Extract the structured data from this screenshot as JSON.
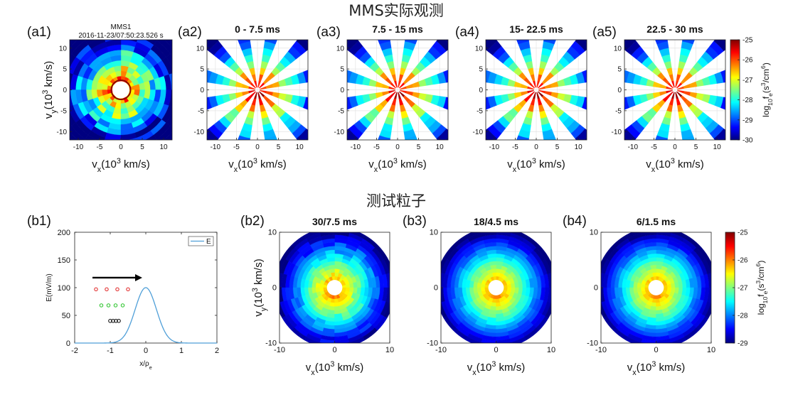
{
  "sections": {
    "top": "MMS实际观测",
    "bottom": "测试粒子"
  },
  "panel_labels": [
    "(a1)",
    "(a2)",
    "(a3)",
    "(a4)",
    "(a5)",
    "(b1)",
    "(b2)",
    "(b3)",
    "(b4)"
  ],
  "colors": {
    "colormap": [
      "#00007f",
      "#0000ff",
      "#007fff",
      "#00ffff",
      "#7fff7f",
      "#ffff00",
      "#ff7f00",
      "#ff0000",
      "#7f0000"
    ],
    "line": "#4f9fd8",
    "arrow": "#000000",
    "dots_red": "#e02020",
    "dots_green": "#20c020",
    "dots_black": "#000000"
  },
  "chart_data": [
    {
      "id": "a1",
      "type": "heatmap",
      "title": "MMS1",
      "subtitle": "2016-11-23/07:50:23.526 s",
      "xlabel": "v_x(10^3 km/s)",
      "ylabel": "v_y(10^3 km/s)",
      "xlim": [
        -12,
        12
      ],
      "ylim": [
        -12,
        12
      ],
      "xticks": [
        -10,
        -5,
        0,
        5,
        10
      ],
      "yticks": [
        10,
        5,
        0,
        -5,
        -10
      ],
      "pattern": "full",
      "hole_radius": 2
    },
    {
      "id": "a2",
      "type": "heatmap",
      "title": "0 - 7.5 ms",
      "xlabel": "v_x(10^3 km/s)",
      "ylabel": "",
      "xlim": [
        -12,
        12
      ],
      "ylim": [
        -12,
        12
      ],
      "xticks": [
        -10,
        -5,
        0,
        5,
        10
      ],
      "yticks": [
        10,
        5,
        0,
        -5,
        -10
      ],
      "pattern": "spokes",
      "spoke_count": 12
    },
    {
      "id": "a3",
      "type": "heatmap",
      "title": "7.5 - 15 ms",
      "xlabel": "v_x(10^3 km/s)",
      "ylabel": "",
      "xlim": [
        -12,
        12
      ],
      "ylim": [
        -12,
        12
      ],
      "xticks": [
        -10,
        -5,
        0,
        5,
        10
      ],
      "yticks": [
        10,
        5,
        0,
        -5,
        -10
      ],
      "pattern": "spokes",
      "spoke_count": 12
    },
    {
      "id": "a4",
      "type": "heatmap",
      "title": "15- 22.5 ms",
      "xlabel": "v_x(10^3 km/s)",
      "ylabel": "",
      "xlim": [
        -12,
        12
      ],
      "ylim": [
        -12,
        12
      ],
      "xticks": [
        -10,
        -5,
        0,
        5,
        10
      ],
      "yticks": [
        10,
        5,
        0,
        -5,
        -10
      ],
      "pattern": "spokes",
      "spoke_count": 12
    },
    {
      "id": "a5",
      "type": "heatmap",
      "title": "22.5 - 30 ms",
      "xlabel": "v_x(10^3 km/s)",
      "ylabel": "",
      "xlim": [
        -12,
        12
      ],
      "ylim": [
        -12,
        12
      ],
      "xticks": [
        -10,
        -5,
        0,
        5,
        10
      ],
      "yticks": [
        10,
        5,
        0,
        -5,
        -10
      ],
      "pattern": "spokes",
      "spoke_count": 12
    },
    {
      "id": "cba",
      "type": "colorbar",
      "label": "log_10f_e(s^3/cm^6)",
      "range": [
        -30,
        -25
      ],
      "ticks": [
        -25,
        -26,
        -27,
        -28,
        -29,
        -30
      ]
    },
    {
      "id": "b1",
      "type": "line",
      "xlabel": "x/ρ_e",
      "ylabel": "E(mV/m)",
      "xlim": [
        -2,
        2
      ],
      "ylim": [
        0,
        200
      ],
      "xticks": [
        -2,
        -1,
        0,
        1,
        2
      ],
      "yticks": [
        200,
        150,
        100,
        50,
        0
      ],
      "legend": [
        "E"
      ],
      "legend_position": "top-right",
      "series": [
        {
          "name": "E",
          "peak": 100,
          "center": 0,
          "sigma": 0.3
        }
      ],
      "arrow": {
        "from": [
          -1.5,
          118
        ],
        "to": [
          -0.1,
          118
        ]
      },
      "dot_rows": [
        {
          "color": "red",
          "y": 97,
          "x": [
            -1.4,
            -1.1,
            -0.8,
            -0.5
          ]
        },
        {
          "color": "green",
          "y": 68,
          "x": [
            -1.25,
            -1.05,
            -0.85,
            -0.65
          ]
        },
        {
          "color": "black",
          "y": 40,
          "x": [
            -1.0,
            -0.92,
            -0.84,
            -0.76
          ]
        }
      ]
    },
    {
      "id": "b2",
      "type": "heatmap",
      "title": "30/7.5 ms",
      "xlabel": "v_x(10^3 km/s)",
      "ylabel": "v_y(10^3 km/s)",
      "xlim": [
        -10,
        10
      ],
      "ylim": [
        -10,
        10
      ],
      "xticks": [
        -10,
        0,
        10
      ],
      "yticks": [
        10,
        0,
        -10
      ],
      "pattern": "disk",
      "hole_radius": 1.4
    },
    {
      "id": "b3",
      "type": "heatmap",
      "title": "18/4.5 ms",
      "xlabel": "v_x(10^3 km/s)",
      "ylabel": "",
      "xlim": [
        -10,
        10
      ],
      "ylim": [
        -10,
        10
      ],
      "xticks": [
        -10,
        0,
        10
      ],
      "yticks": [
        10,
        0,
        -10
      ],
      "pattern": "disk",
      "hole_radius": 1.4
    },
    {
      "id": "b4",
      "type": "heatmap",
      "title": "6/1.5 ms",
      "xlabel": "v_x(10^3 km/s)",
      "ylabel": "",
      "xlim": [
        -10,
        10
      ],
      "ylim": [
        -10,
        10
      ],
      "xticks": [
        -10,
        0,
        10
      ],
      "yticks": [
        10,
        0,
        -10
      ],
      "pattern": "disk",
      "hole_radius": 1.4
    },
    {
      "id": "cbb",
      "type": "colorbar",
      "label": "log_10f_e(s^3/cm^6)",
      "range": [
        -29,
        -25
      ],
      "ticks": [
        -25,
        -26,
        -27,
        -28,
        -29
      ]
    }
  ]
}
